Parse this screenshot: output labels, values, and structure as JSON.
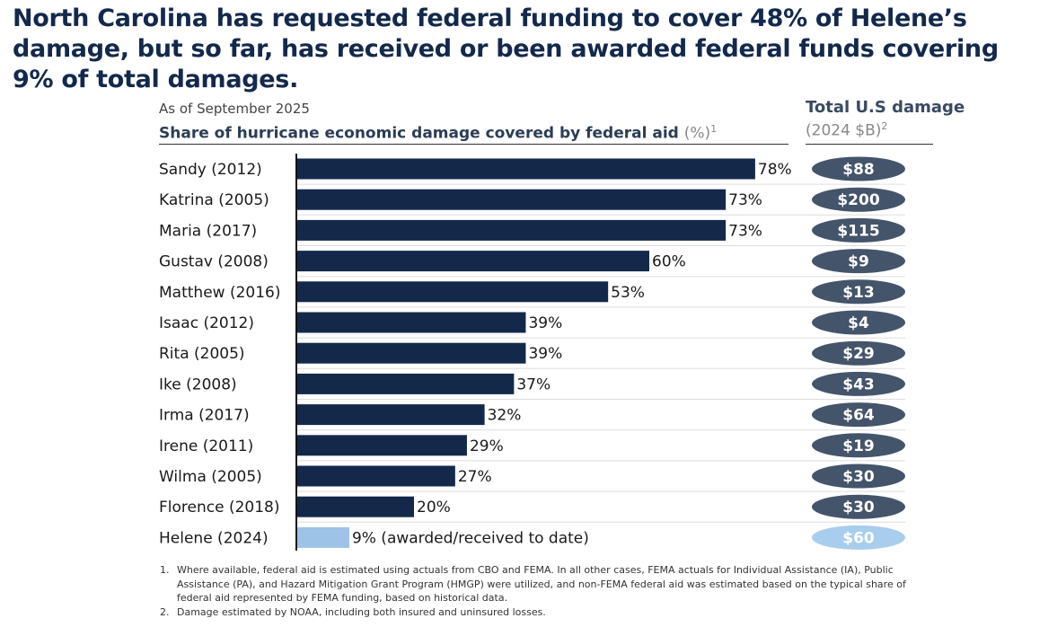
{
  "title": "North Carolina has requested federal funding to cover 48% of Helene’s damage, but so far, has received or been awarded federal funds covering 9% of total damages.",
  "as_of": "As of September 2025",
  "subtitle": "Share of hurricane economic damage covered by federal aid",
  "subtitle_unit": "(%)",
  "subtitle_footnote": "1",
  "damage_header": "Total U.S damage",
  "damage_subheader": "(2024 $B)",
  "damage_footnote": "2",
  "colors": {
    "bar": "#14294a",
    "highlight_bar": "#9dc3e6",
    "pill": "#44546a",
    "highlight_pill": "#a9cdec",
    "title": "#13294b"
  },
  "chart_data": {
    "type": "bar",
    "orientation": "horizontal",
    "categories": [
      "Sandy (2012)",
      "Katrina (2005)",
      "Maria (2017)",
      "Gustav (2008)",
      "Matthew (2016)",
      "Isaac (2012)",
      "Rita (2005)",
      "Ike (2008)",
      "Irma (2017)",
      "Irene (2011)",
      "Wilma (2005)",
      "Florence (2018)",
      "Helene (2024)"
    ],
    "values": [
      78,
      73,
      73,
      60,
      53,
      39,
      39,
      37,
      32,
      29,
      27,
      20,
      9
    ],
    "value_labels": [
      "78%",
      "73%",
      "73%",
      "60%",
      "53%",
      "39%",
      "39%",
      "37%",
      "32%",
      "29%",
      "27%",
      "20%",
      "9% (awarded/received to date)"
    ],
    "damage_labels": [
      "$88",
      "$200",
      "$115",
      "$9",
      "$13",
      "$4",
      "$29",
      "$43",
      "$64",
      "$19",
      "$30",
      "$30",
      "$60"
    ],
    "highlight_category": "Helene (2024)",
    "xlim": [
      0,
      100
    ],
    "grid": false
  },
  "footnotes": [
    {
      "num": "1.",
      "text": "Where available, federal aid is estimated using actuals from CBO and FEMA. In all other cases, FEMA actuals for Individual Assistance (IA), Public Assistance (PA), and Hazard Mitigation Grant Program (HMGP) were utilized, and non-FEMA federal aid was estimated based on the typical share of federal aid represented  by FEMA funding, based on historical data."
    },
    {
      "num": "2.",
      "text": "Damage estimated by NOAA, including both insured and uninsured losses."
    }
  ]
}
